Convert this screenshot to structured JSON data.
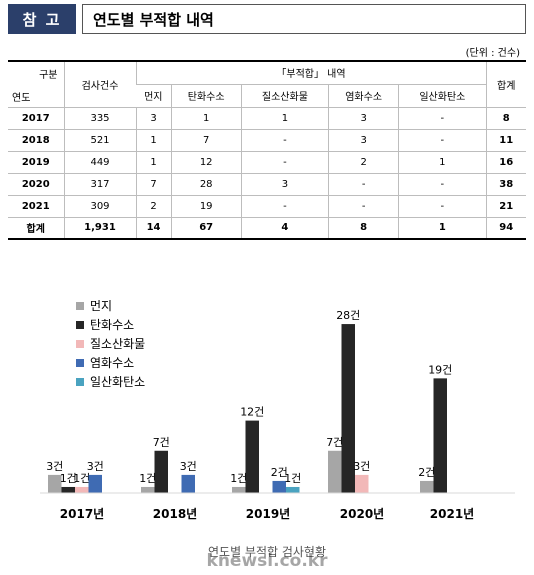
{
  "header": {
    "badge": "참 고",
    "title": "연도별 부적합 내역"
  },
  "unit": "(단위 : 건수)",
  "table": {
    "corner_top": "구분",
    "corner_bottom": "연도",
    "col_count": "검사건수",
    "group": "「부적합」 내역",
    "col_total": "합계",
    "sub_cols": [
      "먼지",
      "탄화수소",
      "질소산화물",
      "염화수소",
      "일산화탄소"
    ],
    "rows": [
      {
        "year": "2017",
        "count": "335",
        "vals": [
          "3",
          "1",
          "1",
          "3",
          "-"
        ],
        "total": "8"
      },
      {
        "year": "2018",
        "count": "521",
        "vals": [
          "1",
          "7",
          "-",
          "3",
          "-"
        ],
        "total": "11"
      },
      {
        "year": "2019",
        "count": "449",
        "vals": [
          "1",
          "12",
          "-",
          "2",
          "1"
        ],
        "total": "16"
      },
      {
        "year": "2020",
        "count": "317",
        "vals": [
          "7",
          "28",
          "3",
          "-",
          "-"
        ],
        "total": "38"
      },
      {
        "year": "2021",
        "count": "309",
        "vals": [
          "2",
          "19",
          "-",
          "-",
          "-"
        ],
        "total": "21"
      }
    ],
    "sum": {
      "label": "합계",
      "count": "1,931",
      "vals": [
        "14",
        "67",
        "4",
        "8",
        "1"
      ],
      "total": "94"
    }
  },
  "chart_data": {
    "type": "bar",
    "title": "",
    "caption": "연도별 부적합 검사현황",
    "categories": [
      "2017년",
      "2018년",
      "2019년",
      "2020년",
      "2021년"
    ],
    "series": [
      {
        "name": "먼지",
        "color": "#a6a6a6",
        "values": [
          3,
          1,
          1,
          7,
          2
        ]
      },
      {
        "name": "탄화수소",
        "color": "#262626",
        "values": [
          1,
          7,
          12,
          28,
          19
        ]
      },
      {
        "name": "질소산화물",
        "color": "#f2b8b8",
        "values": [
          1,
          0,
          0,
          3,
          0
        ]
      },
      {
        "name": "염화수소",
        "color": "#3f6bb3",
        "values": [
          3,
          3,
          2,
          0,
          0
        ]
      },
      {
        "name": "일산화탄소",
        "color": "#4aa3c0",
        "values": [
          0,
          0,
          1,
          0,
          0
        ]
      }
    ],
    "unit_suffix": "건",
    "ylim": [
      0,
      30
    ],
    "legend": "top-left",
    "watermark": "knewsi.co.kr"
  }
}
